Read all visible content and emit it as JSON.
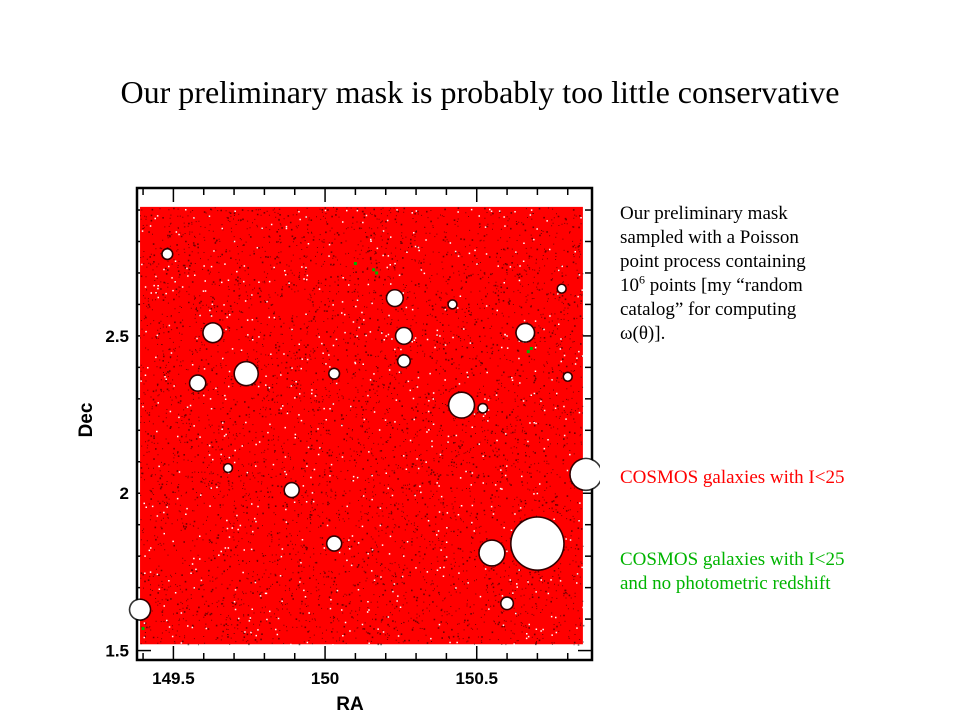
{
  "slide": {
    "title": "Our preliminary mask is probably too little conservative"
  },
  "description": {
    "line1": "Our preliminary mask",
    "line2": "sampled with a Poisson",
    "line3": "point process containing",
    "line4_base": "10",
    "line4_sup": "6",
    "line4_rest": " points [my “random",
    "line5": "catalog”  for computing",
    "line6": "ω(θ)]."
  },
  "legend": {
    "red_label": "COSMOS galaxies with I<25",
    "green_label_line1": "COSMOS galaxies with I<25",
    "green_label_line2": "and no photometric redshift"
  },
  "colors": {
    "mask_fill": "#ff0000",
    "speckle": "#000000",
    "green_points": "#00b400",
    "holes": "#ffffff"
  },
  "chart_data": {
    "type": "scatter",
    "title": "",
    "xlabel": "RA",
    "ylabel": "Dec",
    "xlim": [
      149.38,
      150.88
    ],
    "ylim": [
      1.47,
      2.97
    ],
    "x_ticks": [
      {
        "value": 149.5,
        "label": "149.5"
      },
      {
        "value": 150,
        "label": "150"
      },
      {
        "value": 150.5,
        "label": "150.5"
      }
    ],
    "y_ticks": [
      {
        "value": 1.5,
        "label": "1.5"
      },
      {
        "value": 2,
        "label": "2"
      },
      {
        "value": 2.5,
        "label": "2.5"
      }
    ],
    "mask_region": {
      "ra": [
        149.39,
        150.85
      ],
      "dec": [
        1.52,
        2.91
      ]
    },
    "masked_holes": [
      {
        "ra": 150.7,
        "dec": 1.84,
        "r": 0.085
      },
      {
        "ra": 150.55,
        "dec": 1.81,
        "r": 0.04
      },
      {
        "ra": 150.86,
        "dec": 2.06,
        "r": 0.05
      },
      {
        "ra": 150.45,
        "dec": 2.28,
        "r": 0.04
      },
      {
        "ra": 150.66,
        "dec": 2.51,
        "r": 0.028
      },
      {
        "ra": 150.23,
        "dec": 2.62,
        "r": 0.025
      },
      {
        "ra": 150.26,
        "dec": 2.5,
        "r": 0.025
      },
      {
        "ra": 150.26,
        "dec": 2.42,
        "r": 0.018
      },
      {
        "ra": 149.63,
        "dec": 2.51,
        "r": 0.03
      },
      {
        "ra": 149.74,
        "dec": 2.38,
        "r": 0.037
      },
      {
        "ra": 149.58,
        "dec": 2.35,
        "r": 0.024
      },
      {
        "ra": 149.89,
        "dec": 2.01,
        "r": 0.022
      },
      {
        "ra": 150.03,
        "dec": 1.84,
        "r": 0.022
      },
      {
        "ra": 149.39,
        "dec": 1.63,
        "r": 0.032
      },
      {
        "ra": 150.03,
        "dec": 2.38,
        "r": 0.015
      },
      {
        "ra": 150.52,
        "dec": 2.27,
        "r": 0.013
      },
      {
        "ra": 149.48,
        "dec": 2.76,
        "r": 0.015
      },
      {
        "ra": 150.6,
        "dec": 1.65,
        "r": 0.018
      },
      {
        "ra": 150.8,
        "dec": 2.37,
        "r": 0.012
      },
      {
        "ra": 149.68,
        "dec": 2.08,
        "r": 0.012
      },
      {
        "ra": 150.42,
        "dec": 2.6,
        "r": 0.012
      },
      {
        "ra": 150.78,
        "dec": 2.65,
        "r": 0.012
      }
    ],
    "green_points": [
      {
        "ra": 150.17,
        "dec": 2.7
      },
      {
        "ra": 150.16,
        "dec": 2.71
      },
      {
        "ra": 150.67,
        "dec": 2.45
      },
      {
        "ra": 150.68,
        "dec": 2.46
      },
      {
        "ra": 150.1,
        "dec": 2.73
      },
      {
        "ra": 149.4,
        "dec": 1.57
      }
    ]
  }
}
